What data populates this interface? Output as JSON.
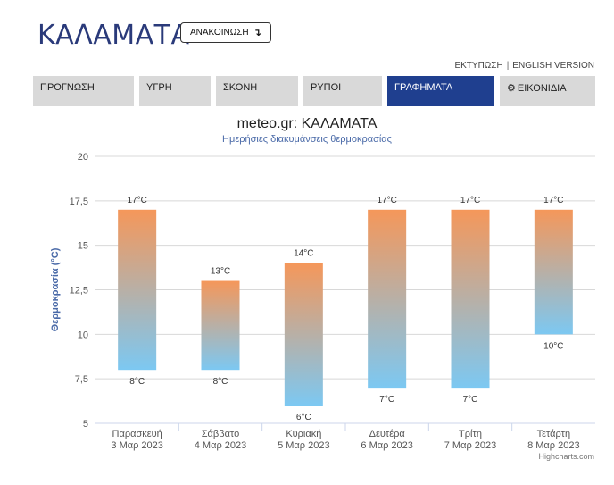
{
  "header": {
    "city": "ΚΑΛΑΜΑΤΑ",
    "announce_label": "ΑΝΑΚΟΙΝΩΣΗ",
    "announce_icon": "arrow-down-icon"
  },
  "top_links": {
    "print": "ΕΚΤΥΠΩΣΗ",
    "separator": "|",
    "english": "ENGLISH VERSION"
  },
  "tabs": [
    {
      "label": "ΠΡΟΓΝΩΣΗ",
      "active": false
    },
    {
      "label": "ΥΓΡΗ",
      "active": false
    },
    {
      "label": "ΣΚΟΝΗ",
      "active": false
    },
    {
      "label": "ΡΥΠΟΙ",
      "active": false
    },
    {
      "label": "ΓΡΑΦΗΜΑΤΑ",
      "active": true
    },
    {
      "label": "ΕΙΚΟΝΙΔΙΑ",
      "active": false,
      "icon": "gear-icon"
    }
  ],
  "colors": {
    "title_blue": "#2a3a7a",
    "active_tab": "#1f3f8f",
    "gradient_top": "#f5975a",
    "gradient_bottom": "#7cc8f2",
    "axis_label": "#4a6aa8"
  },
  "credits": "Highcharts.com",
  "chart_data": {
    "type": "columnrange",
    "title": "meteo.gr: ΚΑΛΑΜΑΤΑ",
    "subtitle": "Ημερήσιες διακυμάνσεις θερμοκρασίας",
    "ylabel": "Θερμοκρασία (°C)",
    "ylim": [
      5,
      20
    ],
    "yticks": [
      "5",
      "7,5",
      "10",
      "12,5",
      "15",
      "17,5",
      "20"
    ],
    "ytick_values": [
      5,
      7.5,
      10,
      12.5,
      15,
      17.5,
      20
    ],
    "grid": true,
    "categories": [
      [
        "Παρασκευή",
        "3 Μαρ 2023"
      ],
      [
        "Σάββατο",
        "4 Μαρ 2023"
      ],
      [
        "Κυριακή",
        "5 Μαρ 2023"
      ],
      [
        "Δευτέρα",
        "6 Μαρ 2023"
      ],
      [
        "Τρίτη",
        "7 Μαρ 2023"
      ],
      [
        "Τετάρτη",
        "8 Μαρ 2023"
      ]
    ],
    "low": [
      8,
      8,
      6,
      7,
      7,
      10
    ],
    "high": [
      17,
      13,
      14,
      17,
      17,
      17
    ],
    "low_labels": [
      "8°C",
      "8°C",
      "6°C",
      "7°C",
      "7°C",
      "10°C"
    ],
    "high_labels": [
      "17°C",
      "13°C",
      "14°C",
      "17°C",
      "17°C",
      "17°C"
    ]
  }
}
